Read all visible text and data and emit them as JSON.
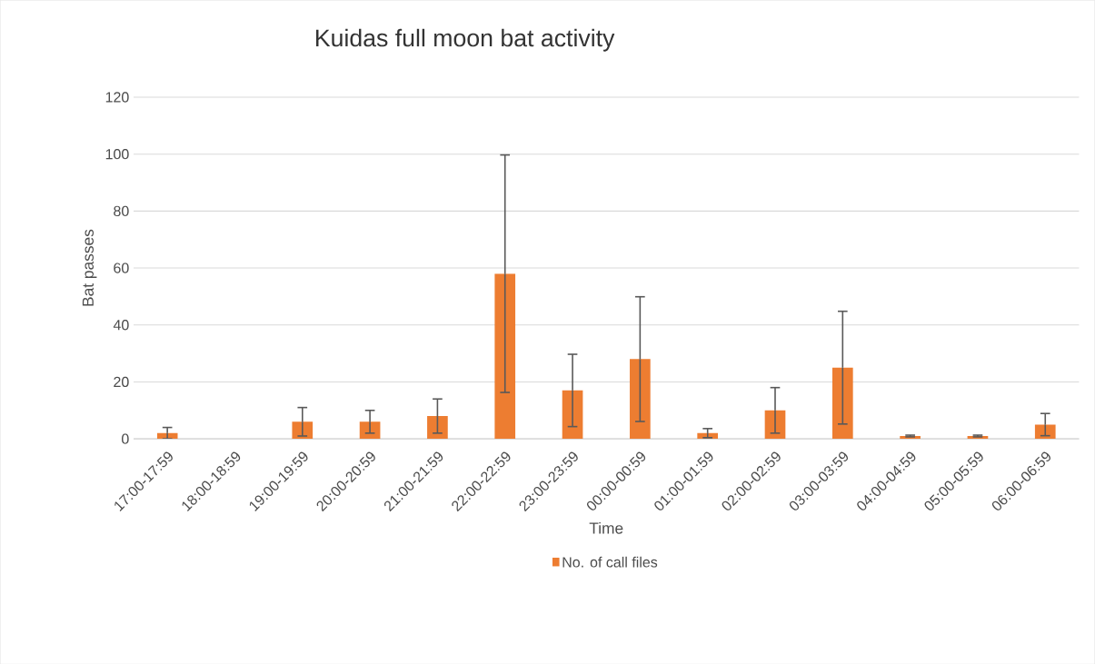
{
  "chart_data": {
    "type": "bar",
    "title": "Kuidas full moon bat activity",
    "xlabel": "Time",
    "ylabel": "Bat passes",
    "categories": [
      "17:00-17:59",
      "18:00-18:59",
      "19:00-19:59",
      "20:00-20:59",
      "21:00-21:59",
      "22:00-22:59",
      "23:00-23:59",
      "00:00-00:59",
      "01:00-01:59",
      "02:00-02:59",
      "03:00-03:59",
      "04:00-04:59",
      "05:00-05:59",
      "06:00-06:59"
    ],
    "series": [
      {
        "name": "No. of call files",
        "color": "#ed7d31",
        "values": [
          2,
          0,
          6,
          6,
          8,
          58,
          17,
          28,
          2,
          10,
          25,
          1,
          1,
          5
        ],
        "errors": [
          2,
          null,
          5,
          4,
          6,
          41.7,
          12.7,
          21.9,
          1.6,
          8,
          19.8,
          0.3,
          0.3,
          3.9
        ]
      }
    ],
    "ylim": [
      0,
      120
    ],
    "yticks": [
      0,
      20,
      40,
      60,
      80,
      100,
      120
    ],
    "grid": "y",
    "legend": "bottom"
  }
}
